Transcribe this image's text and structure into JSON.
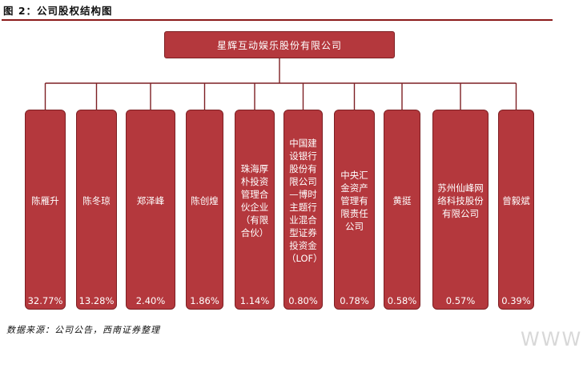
{
  "figure": {
    "title": "图 2：公司股权结构图",
    "source": "数据来源：公司公告，西南证券整理",
    "watermark": "WWW"
  },
  "root": {
    "name": "星辉互动娱乐股份有限公司"
  },
  "shareholders": [
    {
      "name": "陈雁升",
      "pct": "32.77%"
    },
    {
      "name": "陈冬琼",
      "pct": "13.28%"
    },
    {
      "name": "郑泽峰",
      "pct": "2.40%"
    },
    {
      "name": "陈创煌",
      "pct": "1.86%"
    },
    {
      "name": "珠海厚朴投资管理合伙企业（有限合伙）",
      "pct": "1.14%"
    },
    {
      "name": "中国建设银行股份有限公司—博时主题行业混合型证券投资金（LOF）",
      "pct": "0.80%"
    },
    {
      "name": "中央汇金资产管理有限责任公司",
      "pct": "0.78%"
    },
    {
      "name": "黄挺",
      "pct": "0.58%"
    },
    {
      "name": "苏州仙峰网络科技股份有限公司",
      "pct": "0.57%"
    },
    {
      "name": "曾毅斌",
      "pct": "0.39%"
    }
  ],
  "colors": {
    "box_fill": "#b4383d",
    "box_border": "#7d1f23",
    "connector": "#7d1f23",
    "title_rule": "#8b1a1a"
  }
}
